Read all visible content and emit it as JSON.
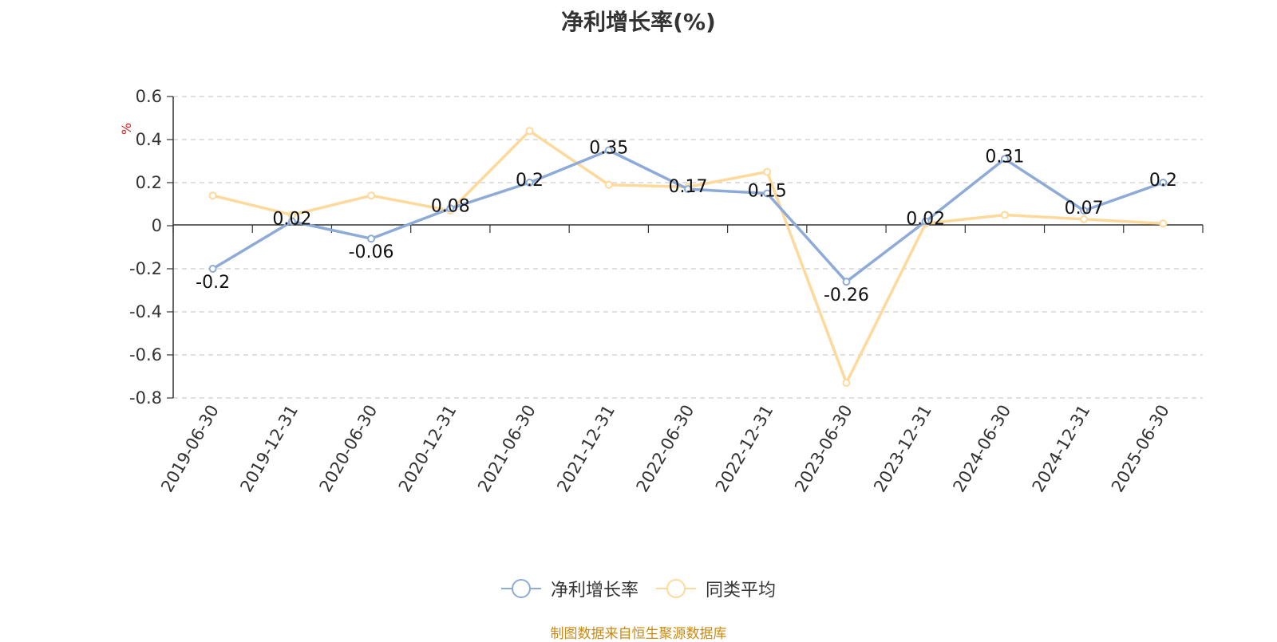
{
  "title": "净利增长率(%)",
  "source_note": "制图数据来自恒生聚源数据库",
  "colors": {
    "series1": "#8eabd8",
    "series2": "#fdd99b",
    "ylabel": "#e02020",
    "source": "#cc8a12"
  },
  "chart_data": {
    "type": "line",
    "title": "净利增长率(%)",
    "ylabel": "%",
    "ylim": [
      -0.8,
      0.6
    ],
    "yticks": [
      0.6,
      0.4,
      0.2,
      0,
      -0.2,
      -0.4,
      -0.6,
      -0.8
    ],
    "ytick_labels": [
      "0.6",
      "0.4",
      "0.2",
      "0",
      "-0.2",
      "-0.4",
      "-0.6",
      "-0.8"
    ],
    "grid": true,
    "legend_position": "bottom-center",
    "categories": [
      "2019-06-30",
      "2019-12-31",
      "2020-06-30",
      "2020-12-31",
      "2021-06-30",
      "2021-12-31",
      "2022-06-30",
      "2022-12-31",
      "2023-06-30",
      "2023-12-31",
      "2024-06-30",
      "2024-12-31",
      "2025-06-30"
    ],
    "series": [
      {
        "name": "净利增长率",
        "values": [
          -0.2,
          0.02,
          -0.06,
          0.08,
          0.2,
          0.35,
          0.17,
          0.15,
          -0.26,
          0.02,
          0.31,
          0.07,
          0.2
        ],
        "show_labels": true
      },
      {
        "name": "同类平均",
        "values": [
          0.14,
          0.05,
          0.14,
          0.07,
          0.44,
          0.19,
          0.18,
          0.25,
          -0.73,
          0.01,
          0.05,
          0.03,
          0.01
        ],
        "show_labels": false
      }
    ]
  }
}
